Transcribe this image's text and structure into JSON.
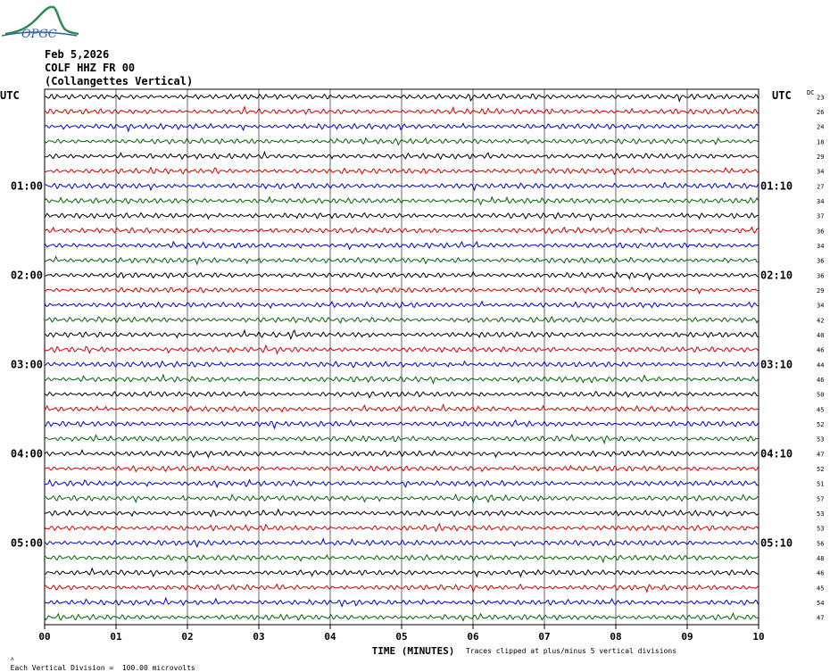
{
  "header": {
    "date": "Feb 5,2026",
    "station": "COLF HHZ FR 00",
    "location": "(Collangettes Vertical)"
  },
  "logo": {
    "text": "OPGC",
    "icon": "opgc-volcano-logo"
  },
  "utc_label": "UTC",
  "dc_label": "DC",
  "footer": {
    "scale_note": "Each Vertical Division =  100.00 microvolts",
    "clip_note": "Traces clipped at plus/minus 5 vertical divisions"
  },
  "colors": {
    "trace_cycle": [
      "#000000",
      "#d00000",
      "#0000c8",
      "#006400"
    ],
    "grid": "#000000",
    "background": "#ffffff"
  },
  "chart_data": {
    "type": "line",
    "title": "",
    "xlabel": "TIME (MINUTES)",
    "ylabel": "",
    "xlim": [
      0,
      10
    ],
    "x_ticks": [
      "00",
      "01",
      "02",
      "03",
      "04",
      "05",
      "06",
      "07",
      "08",
      "09",
      "10"
    ],
    "row_count": 36,
    "minutes_per_row": 10,
    "left_time_labels": [
      {
        "row": 6,
        "label": "01:00"
      },
      {
        "row": 12,
        "label": "02:00"
      },
      {
        "row": 18,
        "label": "03:00"
      },
      {
        "row": 24,
        "label": "04:00"
      },
      {
        "row": 30,
        "label": "05:00"
      }
    ],
    "right_time_labels": [
      {
        "row": 6,
        "label": "01:10"
      },
      {
        "row": 12,
        "label": "02:10"
      },
      {
        "row": 18,
        "label": "03:10"
      },
      {
        "row": 24,
        "label": "04:10"
      },
      {
        "row": 30,
        "label": "05:10"
      }
    ],
    "dc_offsets": [
      "23",
      "26",
      "24",
      "18",
      "29",
      "34",
      "27",
      "34",
      "37",
      "36",
      "34",
      "36",
      "36",
      "29",
      "34",
      "42",
      "40",
      "46",
      "44",
      "46",
      "50",
      "45",
      "52",
      "53",
      "47",
      "52",
      "51",
      "57",
      "53",
      "53",
      "56",
      "48",
      "46",
      "45",
      "54",
      "47"
    ],
    "signal_character": "continuous microseismic noise, no clipping"
  }
}
